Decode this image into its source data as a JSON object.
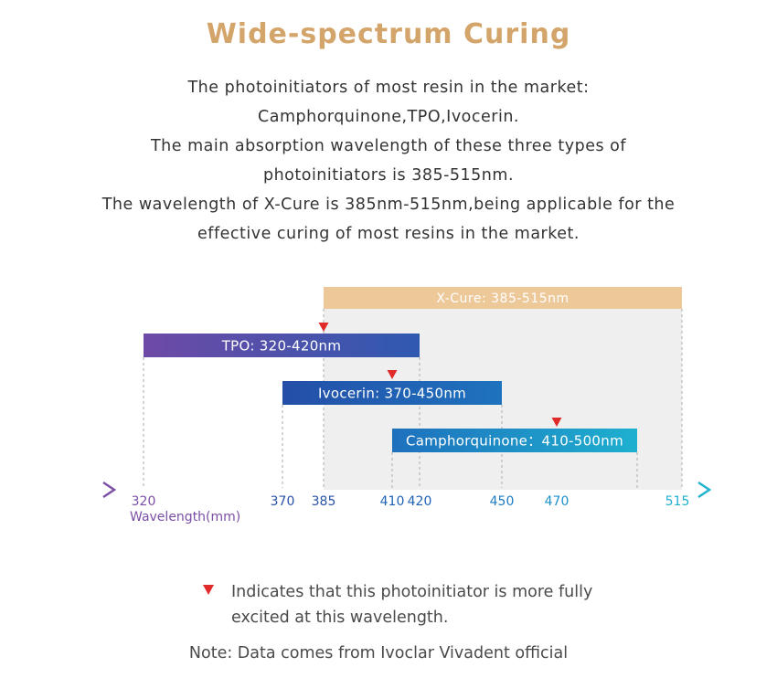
{
  "title": "Wide-spectrum Curing",
  "intro_lines": [
    "The photoinitiators of most resin in the market:",
    "Camphorquinone,TPO,Ivocerin.",
    "The main absorption wavelength of these three types of",
    "photoinitiators is 385-515nm.",
    "The wavelength of X-Cure is 385nm-515nm,being applicable for the",
    "effective curing of most resins in the market."
  ],
  "diagram": {
    "axis_label": "Wavelength(mm)",
    "ticks": [
      320,
      370,
      385,
      410,
      420,
      450,
      470,
      515
    ],
    "axis_gradient": [
      "#7b4fa6",
      "#1d5fb0",
      "#1fb3d0"
    ],
    "xcure": {
      "label": "X-Cure: 385-515nm",
      "start": 385,
      "end": 515,
      "color": "#edc99a",
      "region_color": "#efefef"
    },
    "bars": [
      {
        "label": "TPO: 320-420nm",
        "start": 320,
        "end": 420,
        "peak": 385,
        "colors": [
          "#6e4aa6",
          "#2f59b0"
        ]
      },
      {
        "label": "Ivocerin: 370-450nm",
        "start": 370,
        "end": 450,
        "peak": 410,
        "colors": [
          "#244ea8",
          "#1e73be"
        ]
      },
      {
        "label": "Camphorquinone：410-500nm",
        "start": 410,
        "end": 500,
        "peak": 470,
        "colors": [
          "#1e70bd",
          "#1eb0cf"
        ]
      }
    ],
    "peak_marker_color": "#e12a2a"
  },
  "legend": {
    "line1": "Indicates that this photoinitiator is more fully",
    "line2": "excited at this wavelength."
  },
  "note": "Note: Data comes from Ivoclar Vivadent official"
}
